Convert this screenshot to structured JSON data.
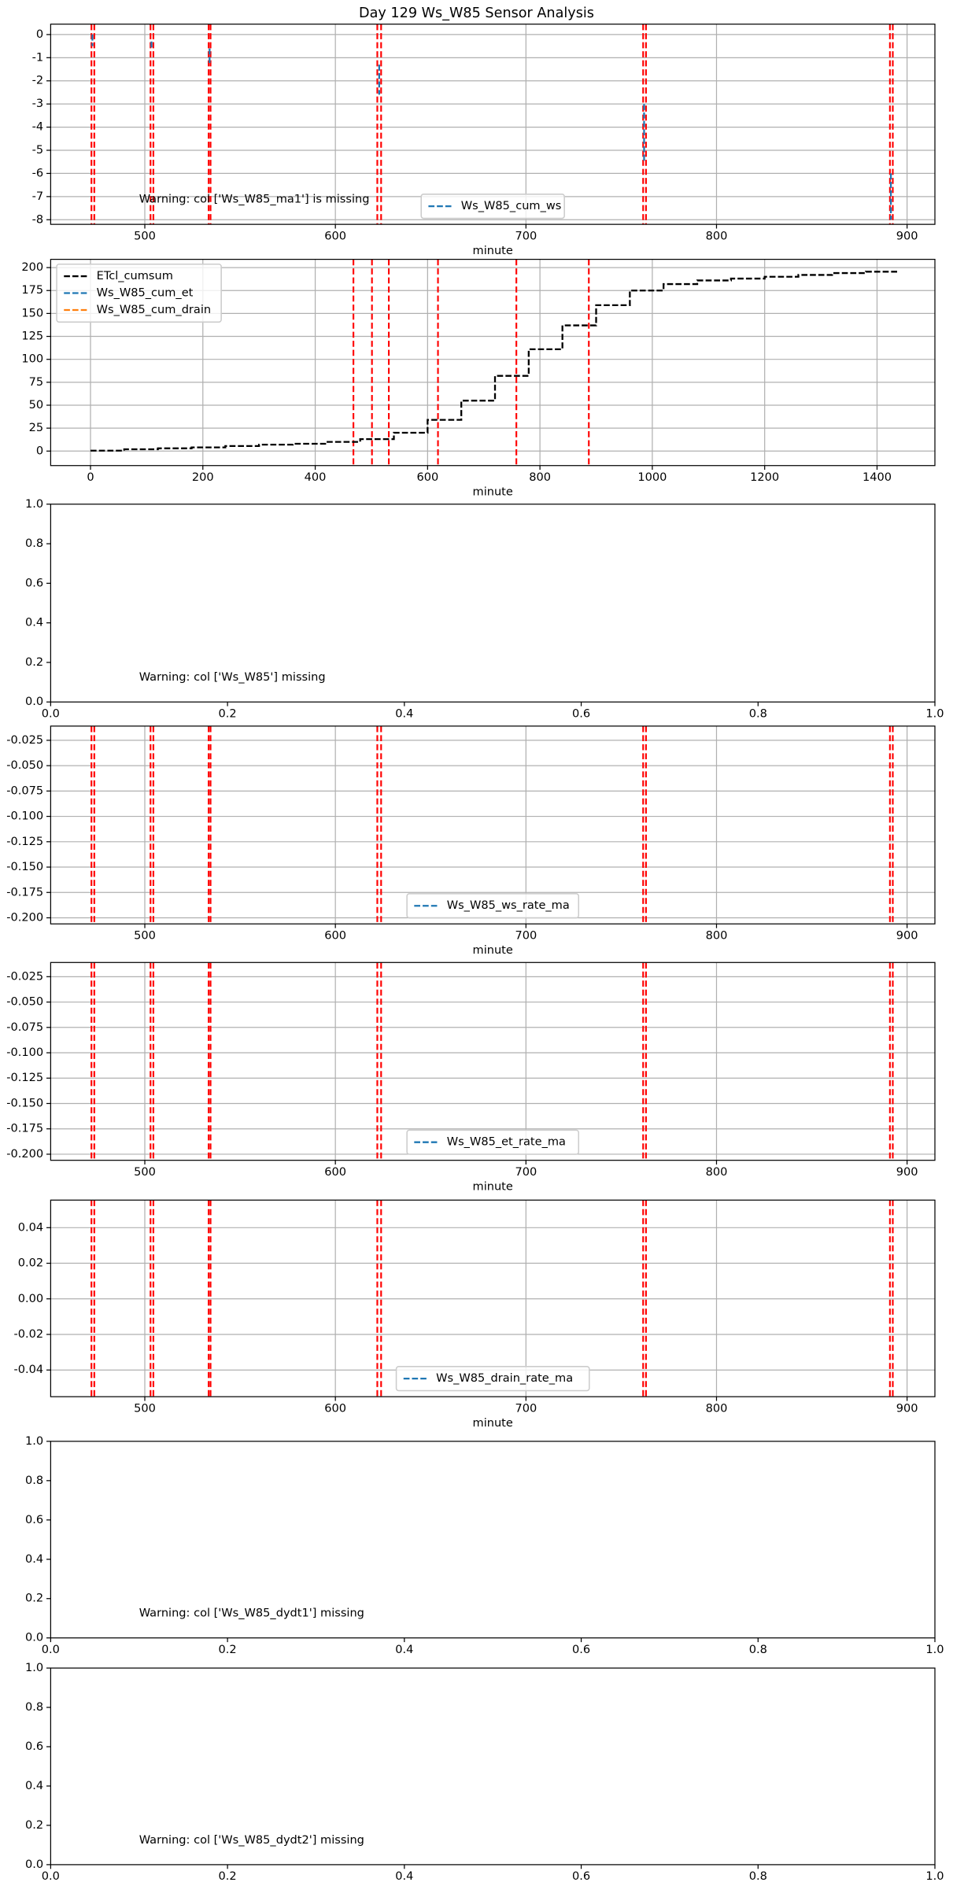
{
  "title": "Day 129 Ws_W85 Sensor Analysis",
  "chart_data": [
    {
      "type": "line",
      "xlabel": "minute",
      "xlim": [
        450.6,
        914.6
      ],
      "xticks": [
        500,
        600,
        700,
        800,
        900
      ],
      "ylim": [
        -8.2,
        0.45
      ],
      "yticks": [
        0,
        -1,
        -2,
        -3,
        -4,
        -5,
        -6,
        -7,
        -8
      ],
      "grid": true,
      "vline_color": "#ff0000",
      "vlines": [
        472,
        473.5,
        503,
        504.5,
        533.5,
        534.5,
        622,
        624,
        761.5,
        763,
        891,
        892.5
      ],
      "legend": "lower center",
      "series": [
        {
          "name": "Ws_W85_cum_ws",
          "color": "#1f77b4",
          "x": [
            472.5,
            472.5,
            473,
            503.5,
            503.5,
            504,
            534,
            534,
            535,
            623,
            623,
            624,
            762,
            762,
            763,
            891.5,
            891.5
          ],
          "values": [
            0,
            -0.5,
            null,
            -0.3,
            -0.6,
            null,
            -0.6,
            -1.3,
            null,
            -1.3,
            -2.6,
            null,
            -3,
            -5.5,
            null,
            -6,
            -8
          ]
        }
      ],
      "annotation": "Warning: col ['Ws_W85_ma1'] is missing"
    },
    {
      "type": "line",
      "xlabel": "minute",
      "xlim": [
        -70.9,
        1503
      ],
      "xticks": [
        0,
        200,
        400,
        600,
        800,
        1000,
        1200,
        1400
      ],
      "ylim": [
        -15.8,
        209
      ],
      "yticks": [
        0,
        25,
        50,
        75,
        100,
        125,
        150,
        175,
        200
      ],
      "grid": true,
      "vline_color": "#ff0000",
      "vlines": [
        468,
        501,
        531,
        618.5,
        758,
        887
      ],
      "legend": "upper left",
      "drawstyle": "steps-post",
      "series": [
        {
          "name": "ETcl_cumsum",
          "color": "#000000",
          "x": [
            0,
            60,
            120,
            180,
            240,
            300,
            360,
            420,
            480,
            540,
            600,
            660,
            720,
            780,
            840,
            900,
            960,
            1020,
            1080,
            1140,
            1200,
            1260,
            1320,
            1380,
            1440
          ],
          "values": [
            0.5,
            2,
            3,
            4,
            5.5,
            7,
            8,
            10,
            13,
            20,
            34,
            55,
            82,
            111,
            137,
            159,
            175,
            182,
            186,
            188,
            190,
            192,
            194,
            195.5,
            195.5
          ]
        },
        {
          "name": "Ws_W85_cum_et",
          "color": "#1f77b4",
          "x": [],
          "values": []
        },
        {
          "name": "Ws_W85_cum_drain",
          "color": "#ff7f0e",
          "x": [],
          "values": []
        }
      ]
    },
    {
      "type": "line",
      "xlim": [
        0,
        1
      ],
      "xticks": [
        {
          "value": 0,
          "label": "0.0"
        },
        0.2,
        0.4,
        0.6,
        0.8,
        {
          "value": 1,
          "label": "1.0"
        }
      ],
      "ylim": [
        0,
        1
      ],
      "yticks": [
        {
          "value": 0,
          "label": "0.0"
        },
        0.2,
        0.4,
        0.6,
        0.8,
        {
          "value": 1,
          "label": "1.0"
        }
      ],
      "grid": false,
      "annotation": "Warning: col ['Ws_W85'] missing"
    },
    {
      "type": "line",
      "xlabel": "minute",
      "xlim": [
        450.6,
        914.6
      ],
      "xticks": [
        500,
        600,
        700,
        800,
        900
      ],
      "ylim": [
        -0.206,
        -0.011
      ],
      "yticks": [
        -0.025,
        {
          "value": -0.05,
          "label": "-0.050"
        },
        -0.075,
        {
          "value": -0.1,
          "label": "-0.100"
        },
        -0.125,
        {
          "value": -0.15,
          "label": "-0.150"
        },
        -0.175,
        {
          "value": -0.2,
          "label": "-0.200"
        }
      ],
      "grid": true,
      "vline_color": "#ff0000",
      "vlines": [
        472,
        473.5,
        503,
        504.5,
        533.5,
        534.5,
        622,
        624,
        761.5,
        763,
        891,
        892.5
      ],
      "legend": "lower center",
      "series": [
        {
          "name": "Ws_W85_ws_rate_ma",
          "color": "#1f77b4",
          "x": [],
          "values": []
        }
      ]
    },
    {
      "type": "line",
      "xlabel": "minute",
      "xlim": [
        450.6,
        914.6
      ],
      "xticks": [
        500,
        600,
        700,
        800,
        900
      ],
      "ylim": [
        -0.206,
        -0.011
      ],
      "yticks": [
        -0.025,
        {
          "value": -0.05,
          "label": "-0.050"
        },
        -0.075,
        {
          "value": -0.1,
          "label": "-0.100"
        },
        -0.125,
        {
          "value": -0.15,
          "label": "-0.150"
        },
        -0.175,
        {
          "value": -0.2,
          "label": "-0.200"
        }
      ],
      "grid": true,
      "vline_color": "#ff0000",
      "vlines": [
        472,
        473.5,
        503,
        504.5,
        533.5,
        534.5,
        622,
        624,
        761.5,
        763,
        891,
        892.5
      ],
      "legend": "lower center",
      "series": [
        {
          "name": "Ws_W85_et_rate_ma",
          "color": "#1f77b4",
          "x": [],
          "values": []
        }
      ]
    },
    {
      "type": "line",
      "xlabel": "minute",
      "xlim": [
        450.6,
        914.6
      ],
      "xticks": [
        500,
        600,
        700,
        800,
        900
      ],
      "ylim": [
        -0.055,
        0.0555
      ],
      "yticks": [
        0.04,
        0.02,
        {
          "value": 0,
          "label": "0.00"
        },
        -0.02,
        -0.04
      ],
      "grid": true,
      "vline_color": "#ff0000",
      "vlines": [
        472,
        473.5,
        503,
        504.5,
        533.5,
        534.5,
        622,
        624,
        761.5,
        763,
        891,
        892.5
      ],
      "legend": "lower center",
      "series": [
        {
          "name": "Ws_W85_drain_rate_ma",
          "color": "#1f77b4",
          "x": [],
          "values": []
        }
      ]
    },
    {
      "type": "line",
      "xlim": [
        0,
        1
      ],
      "xticks": [
        {
          "value": 0,
          "label": "0.0"
        },
        0.2,
        0.4,
        0.6,
        0.8,
        {
          "value": 1,
          "label": "1.0"
        }
      ],
      "ylim": [
        0,
        1
      ],
      "yticks": [
        {
          "value": 0,
          "label": "0.0"
        },
        0.2,
        0.4,
        0.6,
        0.8,
        {
          "value": 1,
          "label": "1.0"
        }
      ],
      "grid": false,
      "annotation": "Warning: col ['Ws_W85_dydt1'] missing"
    },
    {
      "type": "line",
      "xlim": [
        0,
        1
      ],
      "xticks": [
        {
          "value": 0,
          "label": "0.0"
        },
        0.2,
        0.4,
        0.6,
        0.8,
        {
          "value": 1,
          "label": "1.0"
        }
      ],
      "ylim": [
        0,
        1
      ],
      "yticks": [
        {
          "value": 0,
          "label": "0.0"
        },
        0.2,
        0.4,
        0.6,
        0.8,
        {
          "value": 1,
          "label": "1.0"
        }
      ],
      "grid": false,
      "annotation": "Warning: col ['Ws_W85_dydt2'] missing"
    }
  ]
}
